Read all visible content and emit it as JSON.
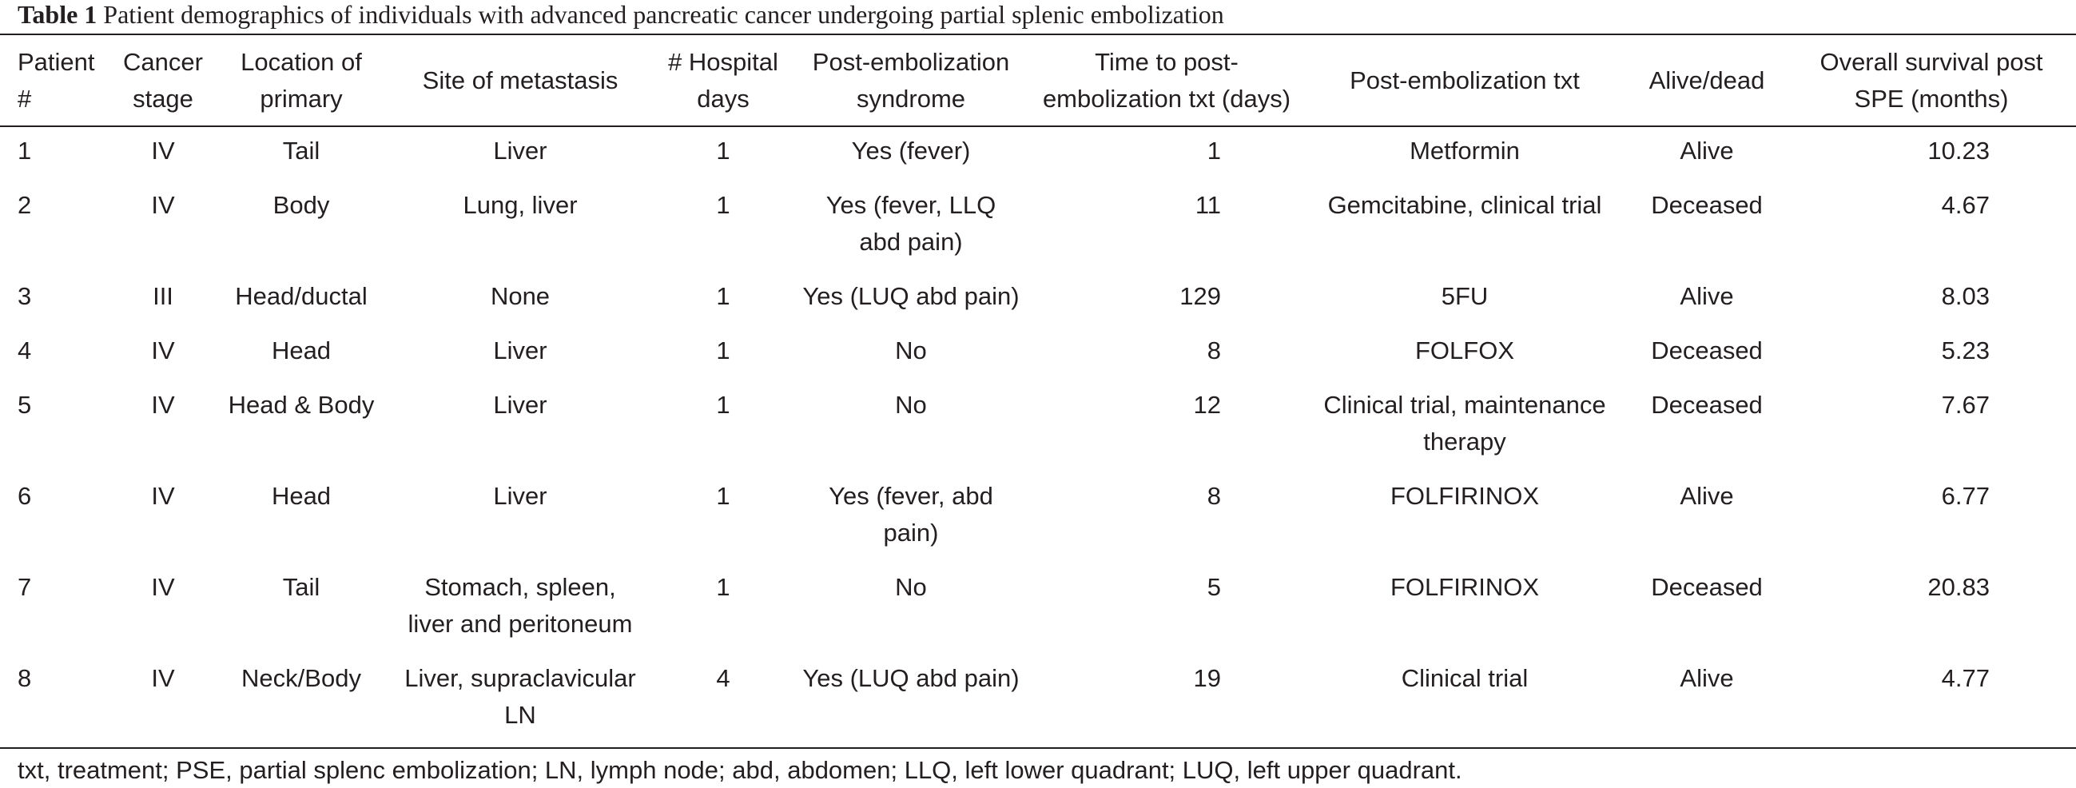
{
  "caption": {
    "label": "Table 1",
    "text": "Patient demographics of individuals with advanced pancreatic cancer undergoing partial splenic embolization"
  },
  "headers": [
    [
      "Patient",
      "#"
    ],
    [
      "Cancer",
      "stage"
    ],
    [
      "Location of",
      "primary"
    ],
    [
      "Site of metastasis"
    ],
    [
      "# Hospital",
      "days"
    ],
    [
      "Post-embolization",
      "syndrome"
    ],
    [
      "Time to post-",
      "embolization txt (days)"
    ],
    [
      "Post-embolization txt"
    ],
    [
      "Alive/dead"
    ],
    [
      "Overall survival post",
      "SPE (months)"
    ]
  ],
  "rows": [
    [
      [
        "1"
      ],
      [
        "IV"
      ],
      [
        "Tail"
      ],
      [
        "Liver"
      ],
      [
        "1"
      ],
      [
        "Yes (fever)"
      ],
      [
        "1"
      ],
      [
        "Metformin"
      ],
      [
        "Alive"
      ],
      [
        "10.23"
      ]
    ],
    [
      [
        "2"
      ],
      [
        "IV"
      ],
      [
        "Body"
      ],
      [
        "Lung, liver"
      ],
      [
        "1"
      ],
      [
        "Yes (fever, LLQ",
        "abd pain)"
      ],
      [
        "11"
      ],
      [
        "Gemcitabine, clinical trial"
      ],
      [
        "Deceased"
      ],
      [
        "4.67"
      ]
    ],
    [
      [
        "3"
      ],
      [
        "III"
      ],
      [
        "Head/ductal"
      ],
      [
        "None"
      ],
      [
        "1"
      ],
      [
        "Yes (LUQ abd pain)"
      ],
      [
        "129"
      ],
      [
        "5FU"
      ],
      [
        "Alive"
      ],
      [
        "8.03"
      ]
    ],
    [
      [
        "4"
      ],
      [
        "IV"
      ],
      [
        "Head"
      ],
      [
        "Liver"
      ],
      [
        "1"
      ],
      [
        "No"
      ],
      [
        "8"
      ],
      [
        "FOLFOX"
      ],
      [
        "Deceased"
      ],
      [
        "5.23"
      ]
    ],
    [
      [
        "5"
      ],
      [
        "IV"
      ],
      [
        "Head & Body"
      ],
      [
        "Liver"
      ],
      [
        "1"
      ],
      [
        "No"
      ],
      [
        "12"
      ],
      [
        "Clinical trial, maintenance",
        "therapy"
      ],
      [
        "Deceased"
      ],
      [
        "7.67"
      ]
    ],
    [
      [
        "6"
      ],
      [
        "IV"
      ],
      [
        "Head"
      ],
      [
        "Liver"
      ],
      [
        "1"
      ],
      [
        "Yes (fever, abd",
        "pain)"
      ],
      [
        "8"
      ],
      [
        "FOLFIRINOX"
      ],
      [
        "Alive"
      ],
      [
        "6.77"
      ]
    ],
    [
      [
        "7"
      ],
      [
        "IV"
      ],
      [
        "Tail"
      ],
      [
        "Stomach, spleen,",
        "liver and peritoneum"
      ],
      [
        "1"
      ],
      [
        "No"
      ],
      [
        "5"
      ],
      [
        "FOLFIRINOX"
      ],
      [
        "Deceased"
      ],
      [
        "20.83"
      ]
    ],
    [
      [
        "8"
      ],
      [
        "IV"
      ],
      [
        "Neck/Body"
      ],
      [
        "Liver, supraclavicular",
        "LN"
      ],
      [
        "4"
      ],
      [
        "Yes (LUQ abd pain)"
      ],
      [
        "19"
      ],
      [
        "Clinical trial"
      ],
      [
        "Alive"
      ],
      [
        "4.77"
      ]
    ]
  ],
  "footnote": "txt, treatment; PSE, partial splenc embolization; LN, lymph node; abd, abdomen; LLQ, left lower quadrant; LUQ, left upper quadrant."
}
